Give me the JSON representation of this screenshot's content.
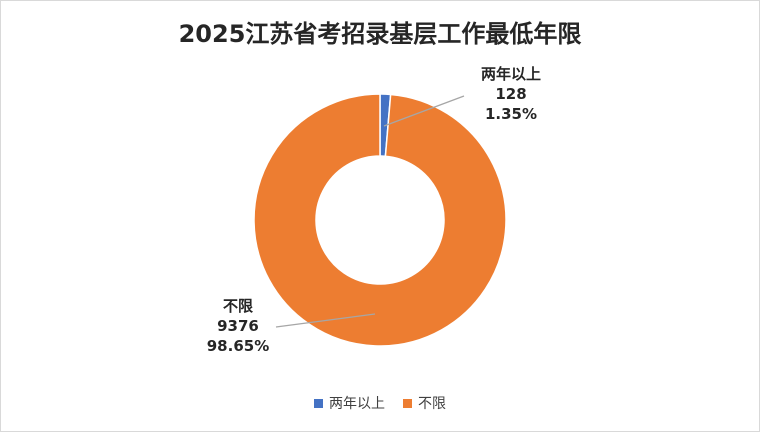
{
  "chart_data": {
    "type": "pie",
    "title": "2025江苏省考招录基层工作最低年限",
    "categories": [
      "两年以上",
      "不限"
    ],
    "values": [
      128,
      9376
    ],
    "percentages": [
      "1.35%",
      "98.65%"
    ],
    "value_labels": [
      "128",
      "9376"
    ],
    "colors": [
      "#4472c4",
      "#ed7d31"
    ],
    "legend_position": "bottom",
    "style": "doughnut"
  }
}
